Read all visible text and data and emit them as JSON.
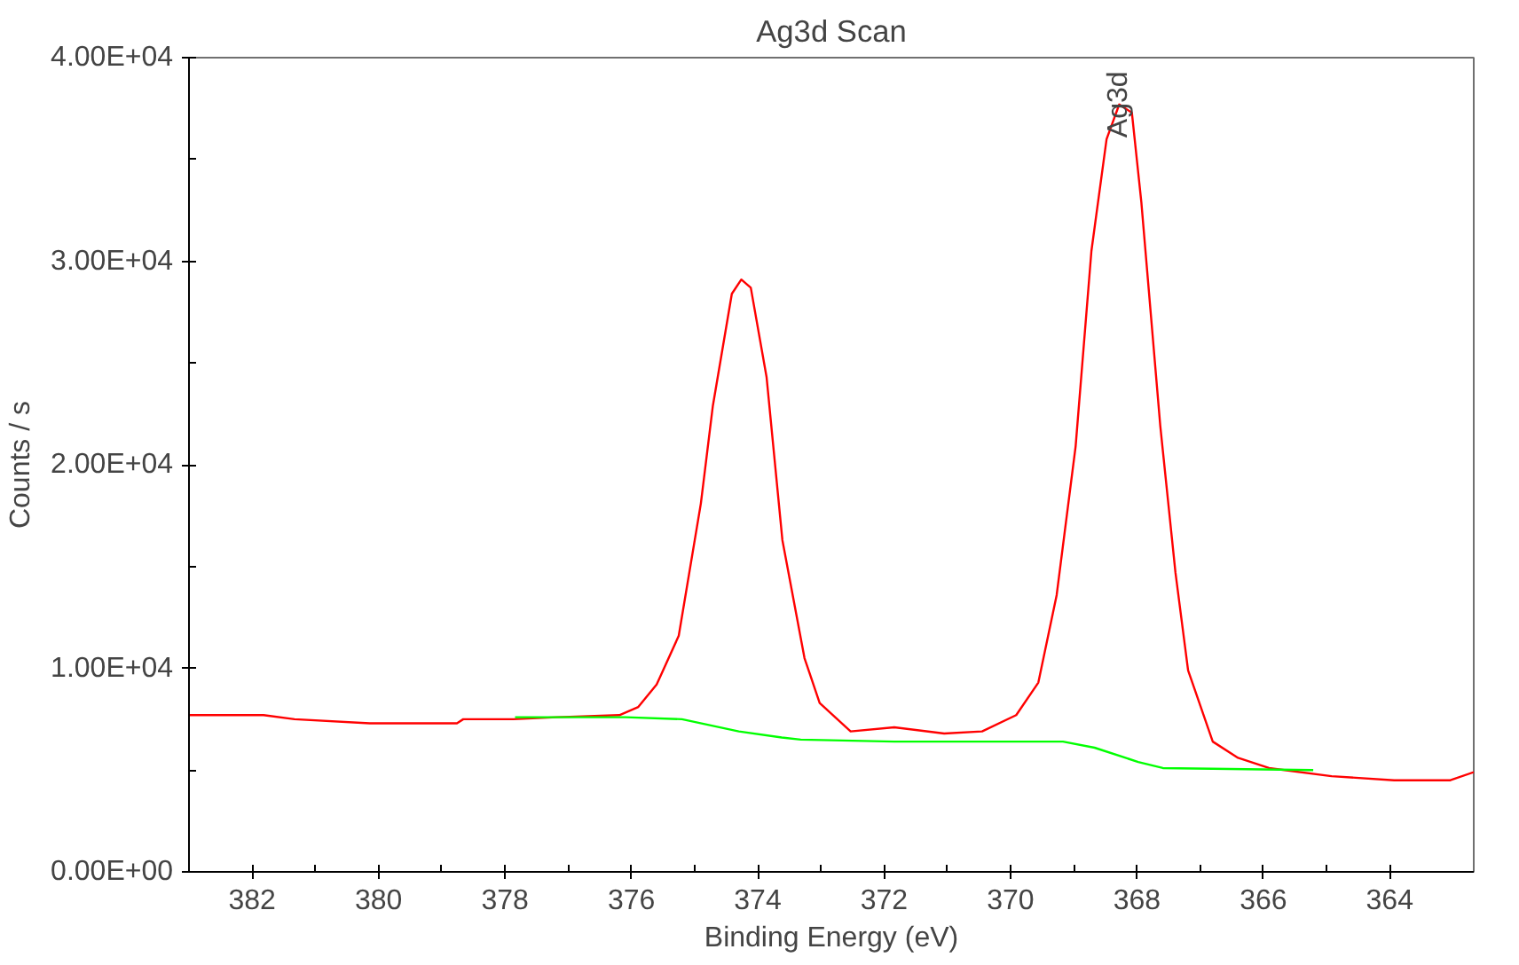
{
  "chart_data": {
    "type": "line",
    "title": "Ag3d Scan",
    "xlabel": "Binding Energy (eV)",
    "ylabel": "Counts / s",
    "xlim": [
      383.0,
      362.67
    ],
    "xticks": [
      382,
      380,
      378,
      376,
      374,
      372,
      370,
      368,
      366,
      364
    ],
    "ylim": [
      0,
      40000
    ],
    "yticks": [
      {
        "value": 0,
        "label": "0.00E+00"
      },
      {
        "value": 10000,
        "label": "1.00E+04"
      },
      {
        "value": 20000,
        "label": "2.00E+04"
      },
      {
        "value": 30000,
        "label": "3.00E+04"
      },
      {
        "value": 40000,
        "label": "4.00E+04"
      }
    ],
    "grid": false,
    "marker": "none",
    "line_style": "solid",
    "annotations": [
      {
        "text": "Ag3d",
        "x": 368.28,
        "y": 37700
      }
    ],
    "series": [
      {
        "color": "#ff0000",
        "x": [
          383.0,
          381.82,
          381.33,
          380.14,
          379.84,
          378.76,
          378.66,
          377.87,
          377.17,
          376.19,
          375.89,
          375.6,
          375.25,
          374.9,
          374.71,
          374.41,
          374.26,
          374.11,
          373.86,
          373.61,
          373.26,
          373.02,
          372.53,
          371.84,
          371.05,
          370.45,
          369.91,
          369.56,
          369.27,
          368.97,
          368.72,
          368.48,
          368.28,
          368.08,
          367.93,
          367.63,
          367.39,
          367.19,
          366.8,
          366.4,
          365.91,
          364.92,
          363.93,
          363.04,
          362.67
        ],
        "values": [
          7700,
          7700,
          7500,
          7300,
          7300,
          7300,
          7500,
          7500,
          7600,
          7700,
          8100,
          9200,
          11600,
          18100,
          22900,
          28400,
          29100,
          28700,
          24300,
          16300,
          10500,
          8300,
          6900,
          7100,
          6800,
          6900,
          7700,
          9300,
          13600,
          20900,
          30500,
          36000,
          37700,
          37300,
          32900,
          21900,
          14700,
          9900,
          6400,
          5600,
          5100,
          4700,
          4500,
          4500,
          4900
        ]
      },
      {
        "color": "#00ff00",
        "x": [
          377.84,
          376.09,
          375.2,
          374.3,
          373.62,
          373.32,
          371.84,
          369.17,
          368.67,
          367.98,
          367.59,
          365.21
        ],
        "values": [
          7600,
          7600,
          7500,
          6900,
          6600,
          6500,
          6400,
          6400,
          6100,
          5400,
          5100,
          5000
        ]
      }
    ]
  }
}
